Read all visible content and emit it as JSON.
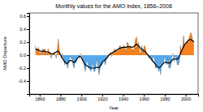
{
  "chart_data": {
    "type": "area",
    "title": "Monthly values for the AMO index, 1856–2008",
    "x_label": "Year",
    "y_label": "AMO Departure",
    "xlim": [
      1850,
      2012
    ],
    "xticks": [
      1860,
      1880,
      1900,
      1920,
      1940,
      1960,
      1980,
      2000
    ],
    "ylim": [
      -0.6,
      0.65
    ],
    "yticks": [
      -0.4,
      -0.2,
      {
        "value": 0,
        "label": "0.0"
      },
      0.2,
      0.4,
      0.6
    ],
    "grid": false,
    "x": [
      1856,
      1857,
      1858,
      1859,
      1860,
      1861,
      1862,
      1863,
      1864,
      1865,
      1866,
      1867,
      1868,
      1869,
      1870,
      1871,
      1872,
      1873,
      1874,
      1875,
      1876,
      1877,
      1878,
      1879,
      1880,
      1881,
      1882,
      1883,
      1884,
      1885,
      1886,
      1887,
      1888,
      1889,
      1890,
      1891,
      1892,
      1893,
      1894,
      1895,
      1896,
      1897,
      1898,
      1899,
      1900,
      1901,
      1902,
      1903,
      1904,
      1905,
      1906,
      1907,
      1908,
      1909,
      1910,
      1911,
      1912,
      1913,
      1914,
      1915,
      1916,
      1917,
      1918,
      1919,
      1920,
      1921,
      1922,
      1923,
      1924,
      1925,
      1926,
      1927,
      1928,
      1929,
      1930,
      1931,
      1932,
      1933,
      1934,
      1935,
      1936,
      1937,
      1938,
      1939,
      1940,
      1941,
      1942,
      1943,
      1944,
      1945,
      1946,
      1947,
      1948,
      1949,
      1950,
      1951,
      1952,
      1953,
      1954,
      1955,
      1956,
      1957,
      1958,
      1959,
      1960,
      1961,
      1962,
      1963,
      1964,
      1965,
      1966,
      1967,
      1968,
      1969,
      1970,
      1971,
      1972,
      1973,
      1974,
      1975,
      1976,
      1977,
      1978,
      1979,
      1980,
      1981,
      1982,
      1983,
      1984,
      1985,
      1986,
      1987,
      1988,
      1989,
      1990,
      1991,
      1992,
      1993,
      1994,
      1995,
      1996,
      1997,
      1998,
      1999,
      2000,
      2001,
      2002,
      2003,
      2004,
      2005,
      2006,
      2007,
      2008
    ],
    "series": [
      {
        "type": "area",
        "colors": [
          "#f5821f",
          "#55aaee"
        ],
        "values": [
          0.15,
          0.05,
          0.1,
          0.12,
          0.0,
          0.05,
          0.02,
          0.1,
          0.08,
          0.1,
          0.05,
          0.0,
          0.1,
          0.05,
          0.05,
          -0.05,
          0.02,
          0.0,
          0.05,
          0.0,
          -0.05,
          0.1,
          0.25,
          0.05,
          0.0,
          -0.05,
          0.02,
          -0.05,
          -0.15,
          -0.1,
          -0.15,
          -0.2,
          -0.1,
          0.0,
          -0.05,
          -0.05,
          -0.15,
          -0.2,
          -0.1,
          -0.12,
          -0.02,
          0.0,
          -0.05,
          0.02,
          0.0,
          -0.05,
          -0.1,
          -0.2,
          -0.25,
          -0.1,
          -0.1,
          -0.2,
          -0.2,
          -0.25,
          -0.2,
          -0.1,
          -0.25,
          -0.25,
          -0.15,
          -0.05,
          -0.2,
          -0.3,
          -0.2,
          -0.15,
          -0.15,
          -0.05,
          -0.1,
          -0.15,
          -0.05,
          -0.05,
          0.02,
          0.0,
          0.05,
          -0.02,
          0.05,
          0.05,
          0.1,
          0.05,
          0.08,
          0.05,
          0.1,
          0.15,
          0.12,
          0.1,
          0.12,
          0.15,
          0.1,
          0.05,
          0.2,
          0.18,
          0.1,
          0.15,
          0.08,
          0.1,
          0.05,
          0.15,
          0.25,
          0.28,
          0.1,
          0.2,
          0.0,
          0.05,
          0.15,
          0.05,
          0.12,
          0.15,
          0.05,
          0.0,
          0.0,
          -0.05,
          -0.02,
          -0.05,
          -0.1,
          0.0,
          -0.05,
          -0.2,
          -0.2,
          -0.15,
          -0.25,
          -0.2,
          -0.3,
          -0.1,
          -0.15,
          -0.1,
          0.0,
          -0.1,
          -0.15,
          -0.05,
          -0.2,
          -0.2,
          -0.15,
          0.0,
          0.02,
          -0.1,
          0.0,
          -0.05,
          -0.15,
          -0.15,
          -0.1,
          0.15,
          0.05,
          0.1,
          0.3,
          0.15,
          0.15,
          0.2,
          0.2,
          0.25,
          0.3,
          0.35,
          0.3,
          0.2,
          0.15
        ]
      },
      {
        "type": "line",
        "color": "#000000",
        "values": [
          0.1,
          0.09,
          0.08,
          0.08,
          0.07,
          0.06,
          0.06,
          0.06,
          0.06,
          0.06,
          0.05,
          0.05,
          0.05,
          0.04,
          0.03,
          0.02,
          0.02,
          0.02,
          0.03,
          0.04,
          0.05,
          0.06,
          0.06,
          0.04,
          0.01,
          -0.02,
          -0.05,
          -0.08,
          -0.1,
          -0.12,
          -0.13,
          -0.12,
          -0.1,
          -0.08,
          -0.08,
          -0.09,
          -0.1,
          -0.11,
          -0.1,
          -0.08,
          -0.05,
          -0.03,
          -0.02,
          -0.02,
          -0.04,
          -0.07,
          -0.1,
          -0.13,
          -0.15,
          -0.16,
          -0.17,
          -0.18,
          -0.19,
          -0.2,
          -0.2,
          -0.2,
          -0.2,
          -0.2,
          -0.19,
          -0.19,
          -0.19,
          -0.19,
          -0.17,
          -0.14,
          -0.11,
          -0.09,
          -0.08,
          -0.07,
          -0.05,
          -0.03,
          -0.01,
          0.01,
          0.02,
          0.03,
          0.04,
          0.05,
          0.06,
          0.07,
          0.08,
          0.09,
          0.1,
          0.11,
          0.11,
          0.12,
          0.12,
          0.12,
          0.12,
          0.12,
          0.13,
          0.13,
          0.13,
          0.13,
          0.12,
          0.12,
          0.13,
          0.14,
          0.16,
          0.17,
          0.16,
          0.14,
          0.12,
          0.1,
          0.09,
          0.08,
          0.07,
          0.06,
          0.04,
          0.02,
          0.0,
          -0.02,
          -0.04,
          -0.06,
          -0.08,
          -0.1,
          -0.12,
          -0.14,
          -0.16,
          -0.18,
          -0.19,
          -0.19,
          -0.18,
          -0.16,
          -0.14,
          -0.12,
          -0.11,
          -0.11,
          -0.11,
          -0.12,
          -0.12,
          -0.12,
          -0.1,
          -0.08,
          -0.06,
          -0.06,
          -0.06,
          -0.06,
          -0.06,
          -0.05,
          -0.02,
          0.02,
          0.06,
          0.1,
          0.13,
          0.16,
          0.18,
          0.2,
          0.22,
          0.23,
          0.24,
          0.24,
          0.23,
          0.22,
          0.2
        ]
      }
    ]
  }
}
